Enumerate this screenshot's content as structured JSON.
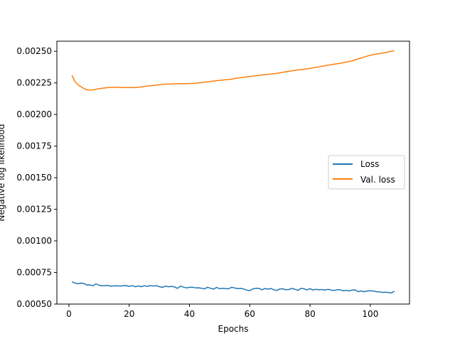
{
  "chart_data": {
    "type": "line",
    "title": "",
    "xlabel": "Epochs",
    "ylabel": "Negative log likelihood",
    "xlim": [
      -4,
      113
    ],
    "ylim": [
      0.0005,
      0.00258
    ],
    "xticks": [
      0,
      20,
      40,
      60,
      80,
      100
    ],
    "yticks": [
      0.0005,
      0.00075,
      0.001,
      0.00125,
      0.0015,
      0.00175,
      0.002,
      0.00225,
      0.0025
    ],
    "ytick_labels": [
      "0.00050",
      "0.00075",
      "0.00100",
      "0.00125",
      "0.00150",
      "0.00175",
      "0.00200",
      "0.00225",
      "0.00250"
    ],
    "grid": false,
    "legend": {
      "position": "center-right",
      "entries": [
        "Loss",
        "Val. loss"
      ]
    },
    "series": [
      {
        "name": "Loss",
        "color": "#1f77b4",
        "x": [
          1,
          2,
          3,
          4,
          5,
          6,
          7,
          8,
          9,
          10,
          11,
          12,
          13,
          14,
          15,
          16,
          17,
          18,
          19,
          20,
          21,
          22,
          23,
          24,
          25,
          26,
          27,
          28,
          29,
          30,
          31,
          32,
          33,
          34,
          35,
          36,
          37,
          38,
          39,
          40,
          41,
          42,
          43,
          44,
          45,
          46,
          47,
          48,
          49,
          50,
          51,
          52,
          53,
          54,
          55,
          56,
          57,
          58,
          59,
          60,
          61,
          62,
          63,
          64,
          65,
          66,
          67,
          68,
          69,
          70,
          71,
          72,
          73,
          74,
          75,
          76,
          77,
          78,
          79,
          80,
          81,
          82,
          83,
          84,
          85,
          86,
          87,
          88,
          89,
          90,
          91,
          92,
          93,
          94,
          95,
          96,
          97,
          98,
          99,
          100,
          101,
          102,
          103,
          104,
          105,
          106,
          107,
          108
        ],
        "y": [
          0.000676,
          0.000667,
          0.00066,
          0.000666,
          0.000662,
          0.00065,
          0.000652,
          0.000645,
          0.00066,
          0.000649,
          0.000645,
          0.000646,
          0.000647,
          0.000641,
          0.000645,
          0.000644,
          0.000643,
          0.000645,
          0.000646,
          0.00064,
          0.000645,
          0.000637,
          0.000643,
          0.000637,
          0.000645,
          0.00064,
          0.000646,
          0.000643,
          0.000645,
          0.000638,
          0.000632,
          0.000642,
          0.000637,
          0.00064,
          0.000636,
          0.000624,
          0.000641,
          0.000634,
          0.000628,
          0.000632,
          0.000633,
          0.000628,
          0.000629,
          0.000625,
          0.00062,
          0.000633,
          0.000625,
          0.000618,
          0.000632,
          0.000621,
          0.000625,
          0.000622,
          0.000621,
          0.000633,
          0.000627,
          0.000622,
          0.000624,
          0.000619,
          0.000611,
          0.000606,
          0.00062,
          0.000624,
          0.000625,
          0.000613,
          0.000623,
          0.000618,
          0.000623,
          0.000613,
          0.000608,
          0.00062,
          0.000621,
          0.000613,
          0.000615,
          0.000625,
          0.000617,
          0.000608,
          0.000624,
          0.000621,
          0.000612,
          0.000622,
          0.000611,
          0.000617,
          0.000613,
          0.000615,
          0.00061,
          0.000617,
          0.00061,
          0.000608,
          0.000613,
          0.000613,
          0.000605,
          0.000608,
          0.000604,
          0.000611,
          0.000612,
          0.000598,
          0.000604,
          0.000598,
          0.000604,
          0.000604,
          0.000604,
          0.000597,
          0.000597,
          0.000592,
          0.000594,
          0.000591,
          0.000588,
          0.000602
        ]
      },
      {
        "name": "Val. loss",
        "color": "#ff7f0e",
        "x": [
          1,
          2,
          3,
          4,
          5,
          6,
          7,
          8,
          9,
          10,
          12,
          14,
          16,
          18,
          20,
          22,
          24,
          26,
          28,
          30,
          32,
          34,
          36,
          38,
          40,
          42,
          44,
          46,
          48,
          50,
          52,
          54,
          56,
          58,
          60,
          62,
          64,
          66,
          68,
          70,
          72,
          74,
          76,
          78,
          80,
          82,
          84,
          86,
          88,
          90,
          92,
          94,
          96,
          98,
          100,
          102,
          104,
          106,
          108
        ],
        "y": [
          0.00231,
          0.00226,
          0.002235,
          0.00222,
          0.002205,
          0.002195,
          0.002193,
          0.002195,
          0.0022,
          0.002205,
          0.00221,
          0.002215,
          0.002215,
          0.002213,
          0.002213,
          0.002213,
          0.002218,
          0.002225,
          0.00223,
          0.002235,
          0.00224,
          0.002242,
          0.002243,
          0.002243,
          0.002245,
          0.002248,
          0.002253,
          0.002258,
          0.002265,
          0.00227,
          0.002275,
          0.00228,
          0.002288,
          0.002295,
          0.0023,
          0.002307,
          0.002313,
          0.002318,
          0.002322,
          0.00233,
          0.002338,
          0.002345,
          0.002353,
          0.002358,
          0.002365,
          0.002373,
          0.002382,
          0.00239,
          0.002398,
          0.002405,
          0.002415,
          0.002425,
          0.00244,
          0.002455,
          0.00247,
          0.002478,
          0.002485,
          0.002495,
          0.002505
        ]
      }
    ]
  }
}
